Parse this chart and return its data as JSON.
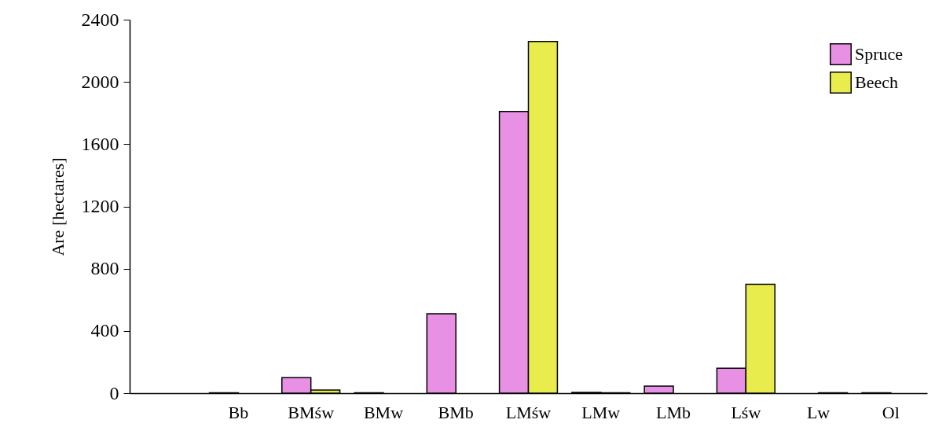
{
  "chart_data": {
    "type": "bar",
    "ylabel": "Are [hectares]",
    "categories": [
      null,
      "Bb",
      "BMśw",
      "BMw",
      "BMb",
      "LMśw",
      "LMw",
      "LMb",
      "Lśw",
      "Lw",
      "Ol"
    ],
    "series": [
      {
        "name": "Spruce",
        "color": "#e890e4",
        "values": [
          null,
          3,
          100,
          3,
          510,
          1810,
          5,
          45,
          160,
          null,
          3
        ]
      },
      {
        "name": "Beech",
        "color": "#e8ec4c",
        "values": [
          null,
          null,
          20,
          null,
          null,
          2260,
          2,
          null,
          700,
          3,
          null
        ]
      }
    ],
    "ylim": [
      0,
      2400
    ],
    "yticks": [
      0,
      400,
      800,
      1200,
      1600,
      2000,
      2400
    ],
    "grid": false,
    "legend": "top right"
  }
}
